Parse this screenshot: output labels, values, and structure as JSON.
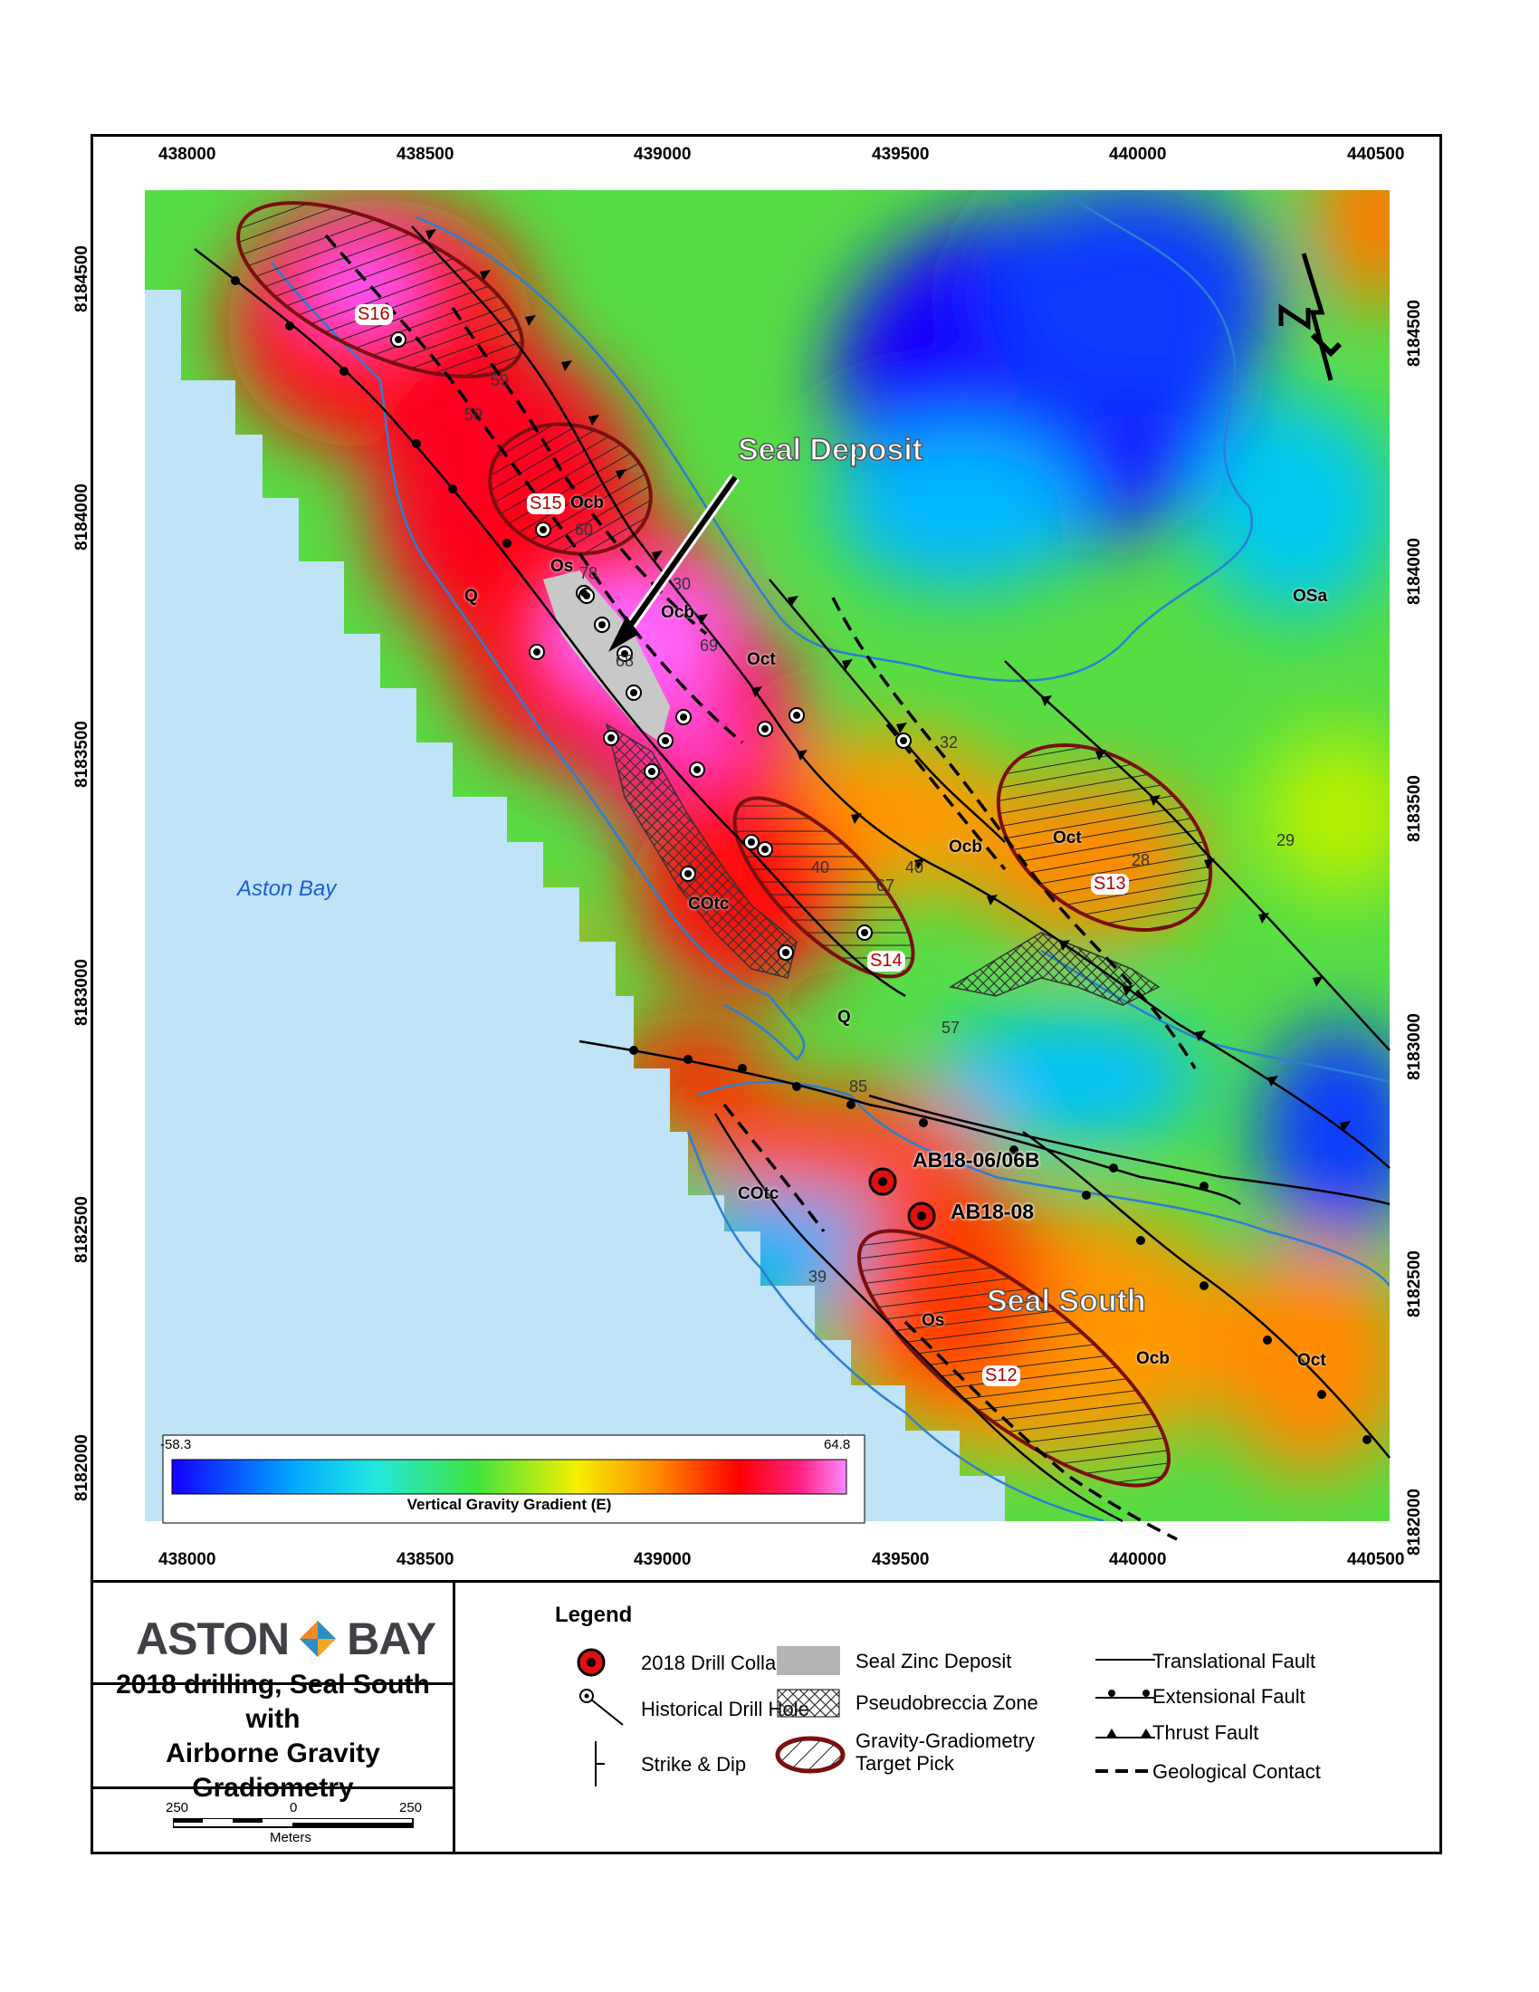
{
  "map": {
    "x_ticks": [
      "438000",
      "438500",
      "439000",
      "439500",
      "440000",
      "440500"
    ],
    "y_ticks": [
      "8184500",
      "8184000",
      "8183500",
      "8183000",
      "8182500",
      "8182000"
    ],
    "colorbar": {
      "min": "-58.3",
      "max": "64.8",
      "label": "Vertical Gravity Gradient (E)"
    },
    "colors": {
      "water": "#bfe3f7",
      "gradient_low": "#1400ff",
      "gradient_mid": "#3fe33f",
      "gradient_high": "#ff0000",
      "gradient_peak": "#ff66ff",
      "target_outline": "#7a0f0f",
      "contour": "#2a7fd4"
    },
    "labels": {
      "seal_deposit": "Seal Deposit",
      "seal_south": "Seal South",
      "aston_bay": "Aston Bay",
      "drill_1": "AB18-06/06B",
      "drill_2": "AB18-08"
    },
    "targets": [
      "S16",
      "S15",
      "S14",
      "S13",
      "S12"
    ],
    "units": [
      "Q",
      "Ocb",
      "Os",
      "Oct",
      "OSa",
      "COtc",
      "Q",
      "Ocb",
      "Os",
      "COtc",
      "Ocb",
      "Oct",
      "Ocb",
      "Oct",
      "Ocb",
      "Os"
    ],
    "dips": [
      "59",
      "59",
      "60",
      "78",
      "30",
      "69",
      "68",
      "32",
      "29",
      "28",
      "40",
      "67",
      "40",
      "63",
      "57",
      "85",
      "39"
    ],
    "north": "N"
  },
  "logo": {
    "left": "ASTON",
    "right": "BAY"
  },
  "title": {
    "line1": "2018 drilling, Seal South with",
    "line2": "Airborne Gravity Gradiometry"
  },
  "scale": {
    "left": "250",
    "mid": "0",
    "right": "250",
    "unit": "Meters"
  },
  "legend": {
    "title": "Legend",
    "drill_collar": "2018 Drill Collar",
    "historical_hole": "Historical Drill Hole",
    "strike_dip": "Strike & Dip",
    "zinc_deposit": "Seal Zinc Deposit",
    "pseudobreccia": "Pseudobreccia Zone",
    "target_pick_1": "Gravity-Gradiometry",
    "target_pick_2": "Target Pick",
    "translational_fault": "Translational Fault",
    "extensional_fault": "Extensional Fault",
    "thrust_fault": "Thrust Fault",
    "geological_contact": "Geological Contact"
  }
}
